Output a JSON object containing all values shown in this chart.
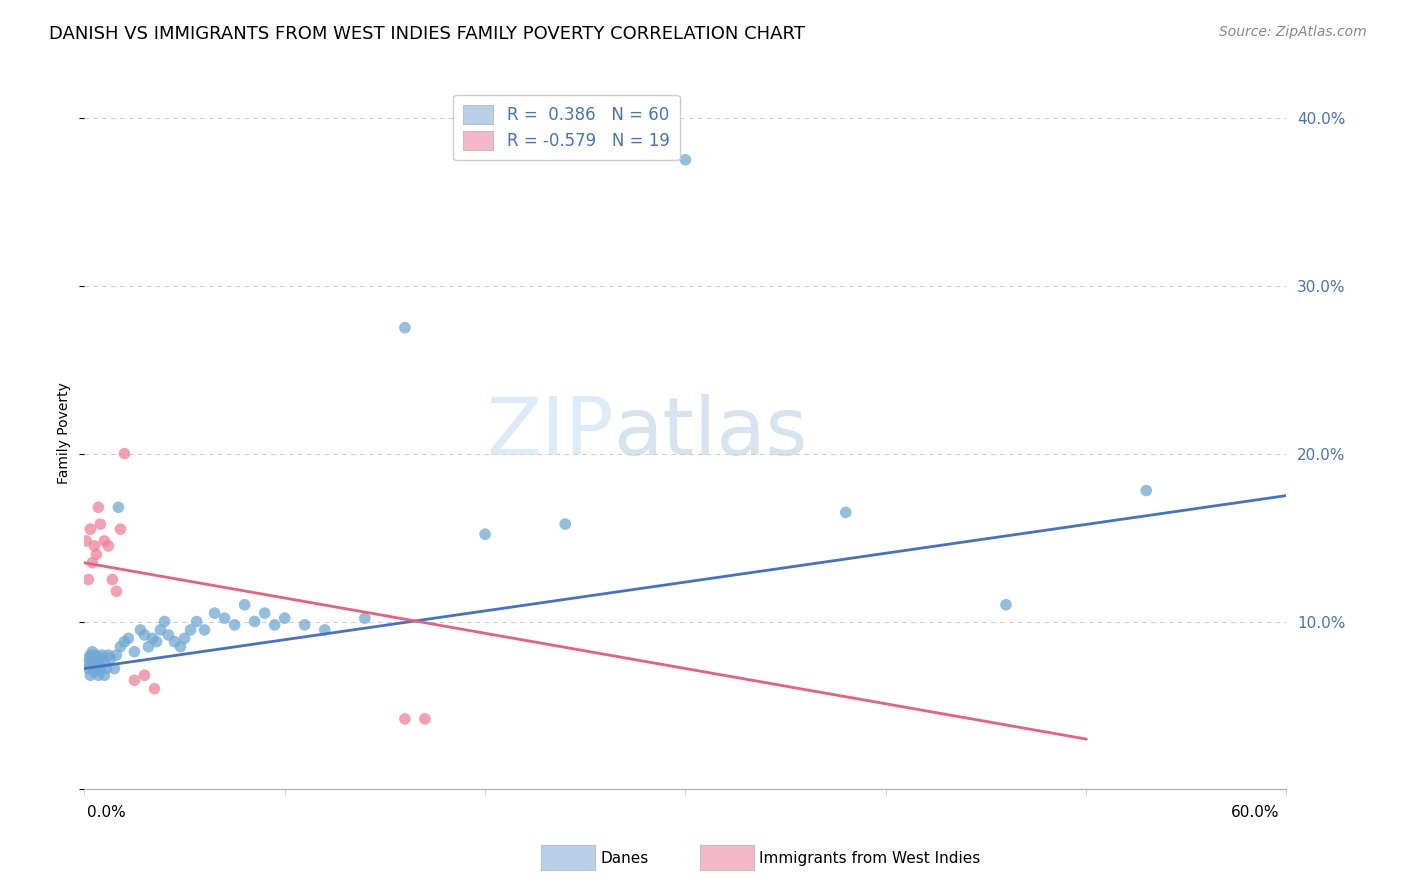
{
  "title": "DANISH VS IMMIGRANTS FROM WEST INDIES FAMILY POVERTY CORRELATION CHART",
  "source": "Source: ZipAtlas.com",
  "ylabel": "Family Poverty",
  "yticks": [
    0.0,
    0.1,
    0.2,
    0.3,
    0.4
  ],
  "xlim": [
    0.0,
    0.6
  ],
  "ylim": [
    0.0,
    0.425
  ],
  "watermark_zip": "ZIP",
  "watermark_atlas": "atlas",
  "legend_entry1_label": "R =  0.386   N = 60",
  "legend_entry2_label": "R = -0.579   N = 19",
  "legend_color1": "#b8d0ea",
  "legend_color2": "#f4b8c8",
  "danes_dot_color": "#6fa8d4",
  "immigrants_dot_color": "#f08098",
  "danes_line_color": "#4472c4",
  "immigrants_line_color": "#e8607a",
  "danes_trend_x0": 0.0,
  "danes_trend_y0": 0.072,
  "danes_trend_x1": 0.6,
  "danes_trend_y1": 0.175,
  "immigrants_trend_x0": 0.0,
  "immigrants_trend_y0": 0.135,
  "immigrants_trend_x1": 0.5,
  "immigrants_trend_y1": 0.03,
  "danes_x": [
    0.001,
    0.002,
    0.002,
    0.003,
    0.003,
    0.004,
    0.004,
    0.005,
    0.005,
    0.006,
    0.006,
    0.007,
    0.007,
    0.008,
    0.008,
    0.009,
    0.01,
    0.01,
    0.011,
    0.012,
    0.013,
    0.015,
    0.016,
    0.017,
    0.018,
    0.02,
    0.022,
    0.025,
    0.028,
    0.03,
    0.032,
    0.034,
    0.036,
    0.038,
    0.04,
    0.042,
    0.045,
    0.048,
    0.05,
    0.053,
    0.056,
    0.06,
    0.065,
    0.07,
    0.075,
    0.08,
    0.085,
    0.09,
    0.095,
    0.1,
    0.11,
    0.12,
    0.14,
    0.16,
    0.2,
    0.24,
    0.3,
    0.38,
    0.46,
    0.53
  ],
  "danes_y": [
    0.075,
    0.078,
    0.072,
    0.08,
    0.068,
    0.075,
    0.082,
    0.07,
    0.078,
    0.072,
    0.08,
    0.068,
    0.075,
    0.078,
    0.072,
    0.08,
    0.068,
    0.075,
    0.072,
    0.08,
    0.078,
    0.072,
    0.08,
    0.168,
    0.085,
    0.088,
    0.09,
    0.082,
    0.095,
    0.092,
    0.085,
    0.09,
    0.088,
    0.095,
    0.1,
    0.092,
    0.088,
    0.085,
    0.09,
    0.095,
    0.1,
    0.095,
    0.105,
    0.102,
    0.098,
    0.11,
    0.1,
    0.105,
    0.098,
    0.102,
    0.098,
    0.095,
    0.102,
    0.275,
    0.152,
    0.158,
    0.375,
    0.165,
    0.11,
    0.178
  ],
  "immigrants_x": [
    0.001,
    0.002,
    0.003,
    0.004,
    0.005,
    0.006,
    0.007,
    0.008,
    0.01,
    0.012,
    0.014,
    0.016,
    0.018,
    0.02,
    0.025,
    0.03,
    0.035,
    0.16,
    0.17
  ],
  "immigrants_y": [
    0.148,
    0.125,
    0.155,
    0.135,
    0.145,
    0.14,
    0.168,
    0.158,
    0.148,
    0.145,
    0.125,
    0.118,
    0.155,
    0.2,
    0.065,
    0.068,
    0.06,
    0.042,
    0.042
  ],
  "background_color": "#ffffff",
  "grid_color": "#cccccc",
  "tick_color": "#4472c4",
  "title_fontsize": 13,
  "source_fontsize": 10,
  "axis_label_fontsize": 10,
  "tick_fontsize": 11,
  "legend_fontsize": 12,
  "dot_size": 70,
  "dot_alpha": 0.75,
  "trend_linewidth": 2.0
}
